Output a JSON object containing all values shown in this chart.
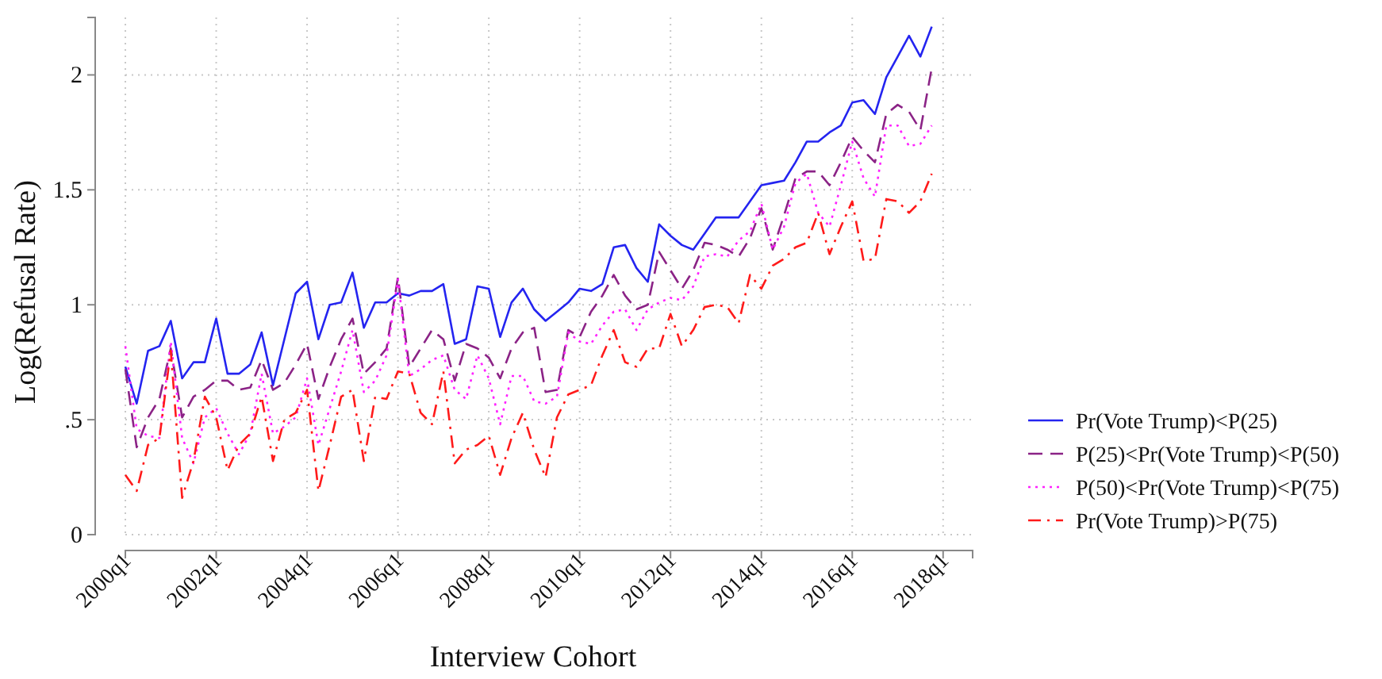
{
  "chart_data": {
    "type": "line",
    "xlabel": "Interview Cohort",
    "ylabel": "Log(Refusal Rate)",
    "categories": [
      "2000q1",
      null,
      null,
      null,
      null,
      null,
      null,
      null,
      "2002q1",
      null,
      null,
      null,
      null,
      null,
      null,
      null,
      "2004q1",
      null,
      null,
      null,
      null,
      null,
      null,
      null,
      "2006q1",
      null,
      null,
      null,
      null,
      null,
      null,
      null,
      "2008q1",
      null,
      null,
      null,
      null,
      null,
      null,
      null,
      "2010q1",
      null,
      null,
      null,
      null,
      null,
      null,
      null,
      "2012q1",
      null,
      null,
      null,
      null,
      null,
      null,
      null,
      "2014q1",
      null,
      null,
      null,
      null,
      null,
      null,
      null,
      "2016q1",
      null,
      null,
      null,
      null,
      null,
      null,
      null,
      "2018q1"
    ],
    "ylim": [
      0,
      2.25
    ],
    "yticks": [
      0,
      {
        "value": 0.5,
        "label": ".5"
      },
      1,
      1.5,
      2
    ],
    "grid": true,
    "legend": "right",
    "marker": "none",
    "series": [
      {
        "name": "Pr(Vote Trump)<P(25)",
        "color": "#2424f0",
        "line_style": "solid",
        "values": [
          0.73,
          0.57,
          0.8,
          0.82,
          0.93,
          0.68,
          0.75,
          0.75,
          0.94,
          0.7,
          0.7,
          0.74,
          0.88,
          0.65,
          0.85,
          1.05,
          1.1,
          0.85,
          1.0,
          1.01,
          1.14,
          0.9,
          1.01,
          1.01,
          1.05,
          1.04,
          1.06,
          1.06,
          1.09,
          0.83,
          0.85,
          1.08,
          1.07,
          0.86,
          1.01,
          1.07,
          0.98,
          0.93,
          0.97,
          1.01,
          1.07,
          1.06,
          1.09,
          1.25,
          1.26,
          1.16,
          1.1,
          1.35,
          1.3,
          1.26,
          1.24,
          1.31,
          1.38,
          1.38,
          1.38,
          1.45,
          1.52,
          1.53,
          1.54,
          1.62,
          1.71,
          1.71,
          1.75,
          1.78,
          1.88,
          1.89,
          1.83,
          1.99,
          2.08,
          2.17,
          2.08,
          2.21,
          null
        ]
      },
      {
        "name": "P(25)<Pr(Vote Trump)<P(50)",
        "color": "#8b2386",
        "line_style": "dashed",
        "values": [
          0.72,
          0.38,
          0.51,
          0.59,
          0.81,
          0.51,
          0.6,
          0.63,
          0.67,
          0.67,
          0.63,
          0.64,
          0.76,
          0.63,
          0.66,
          0.74,
          0.83,
          0.59,
          0.73,
          0.85,
          0.94,
          0.7,
          0.75,
          0.81,
          1.12,
          0.73,
          0.81,
          0.89,
          0.85,
          0.67,
          0.83,
          0.81,
          0.77,
          0.68,
          0.81,
          0.88,
          0.9,
          0.62,
          0.63,
          0.89,
          0.86,
          0.97,
          1.04,
          1.13,
          1.04,
          0.98,
          1.0,
          1.23,
          1.15,
          1.07,
          1.15,
          1.27,
          1.26,
          1.24,
          1.21,
          1.29,
          1.42,
          1.24,
          1.39,
          1.55,
          1.58,
          1.58,
          1.52,
          1.62,
          1.73,
          1.67,
          1.62,
          1.83,
          1.87,
          1.84,
          1.76,
          2.03,
          null
        ]
      },
      {
        "name": "P(50)<Pr(Vote Trump)<P(75)",
        "color": "#ff22ff",
        "line_style": "dotted",
        "values": [
          0.82,
          0.46,
          0.43,
          0.42,
          0.84,
          0.42,
          0.31,
          0.51,
          0.55,
          0.44,
          0.35,
          0.44,
          0.7,
          0.44,
          0.47,
          0.51,
          0.68,
          0.39,
          0.55,
          0.71,
          0.89,
          0.62,
          0.67,
          0.78,
          1.11,
          0.69,
          0.72,
          0.76,
          0.78,
          0.63,
          0.59,
          0.78,
          0.68,
          0.48,
          0.69,
          0.69,
          0.58,
          0.57,
          0.6,
          0.88,
          0.84,
          0.83,
          0.91,
          0.97,
          0.98,
          0.89,
          0.98,
          1.01,
          1.03,
          1.02,
          1.08,
          1.21,
          1.22,
          1.21,
          1.28,
          1.32,
          1.44,
          1.24,
          1.34,
          1.53,
          1.57,
          1.4,
          1.34,
          1.52,
          1.71,
          1.55,
          1.47,
          1.78,
          1.78,
          1.69,
          1.7,
          1.78,
          null
        ]
      },
      {
        "name": "Pr(Vote Trump)>P(75)",
        "color": "#ff1a1a",
        "line_style": "dashdot",
        "values": [
          0.26,
          0.19,
          0.39,
          0.42,
          0.8,
          0.16,
          0.32,
          0.6,
          0.51,
          0.28,
          0.39,
          0.44,
          0.6,
          0.32,
          0.5,
          0.53,
          0.63,
          0.19,
          0.39,
          0.6,
          0.63,
          0.32,
          0.6,
          0.59,
          0.71,
          0.7,
          0.53,
          0.48,
          0.71,
          0.31,
          0.37,
          0.39,
          0.43,
          0.26,
          0.42,
          0.53,
          0.37,
          0.25,
          0.51,
          0.61,
          0.63,
          0.65,
          0.78,
          0.89,
          0.75,
          0.73,
          0.81,
          0.81,
          0.96,
          0.82,
          0.89,
          0.99,
          1.0,
          0.99,
          0.92,
          1.13,
          1.07,
          1.17,
          1.2,
          1.25,
          1.27,
          1.4,
          1.22,
          1.34,
          1.45,
          1.19,
          1.2,
          1.46,
          1.45,
          1.4,
          1.45,
          1.57,
          null
        ]
      }
    ]
  }
}
